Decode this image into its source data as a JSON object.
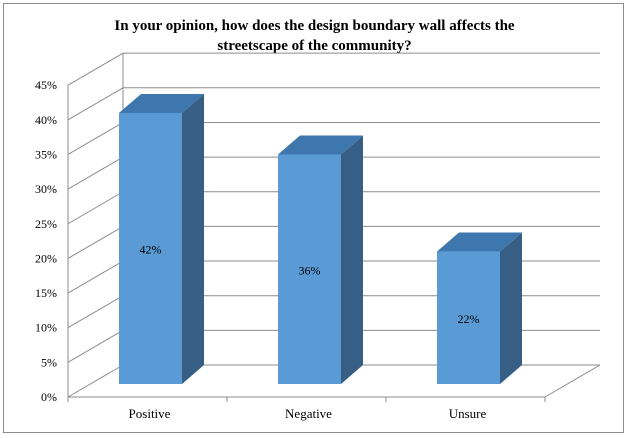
{
  "chart_data": {
    "type": "bar",
    "title": "In your opinion, how does the design boundary wall affects the streetscape of the community?",
    "title_lines": [
      "In your opinion, how does the design boundary wall affects the",
      "streetscape of the community?"
    ],
    "categories": [
      "Positive",
      "Negative",
      "Unsure"
    ],
    "values": [
      42,
      36,
      22
    ],
    "data_labels": [
      "42%",
      "36%",
      "22%"
    ],
    "ylim": [
      0,
      45
    ],
    "ytick_step": 5,
    "ytick_suffix": "%",
    "xlabel": "",
    "ylabel": "",
    "grid": true,
    "style": "3d-column"
  },
  "colors": {
    "bar_front": "#5b9bd5",
    "bar_top": "#3e77ad",
    "bar_side": "#375f85",
    "grid": "#8c8c8c"
  }
}
